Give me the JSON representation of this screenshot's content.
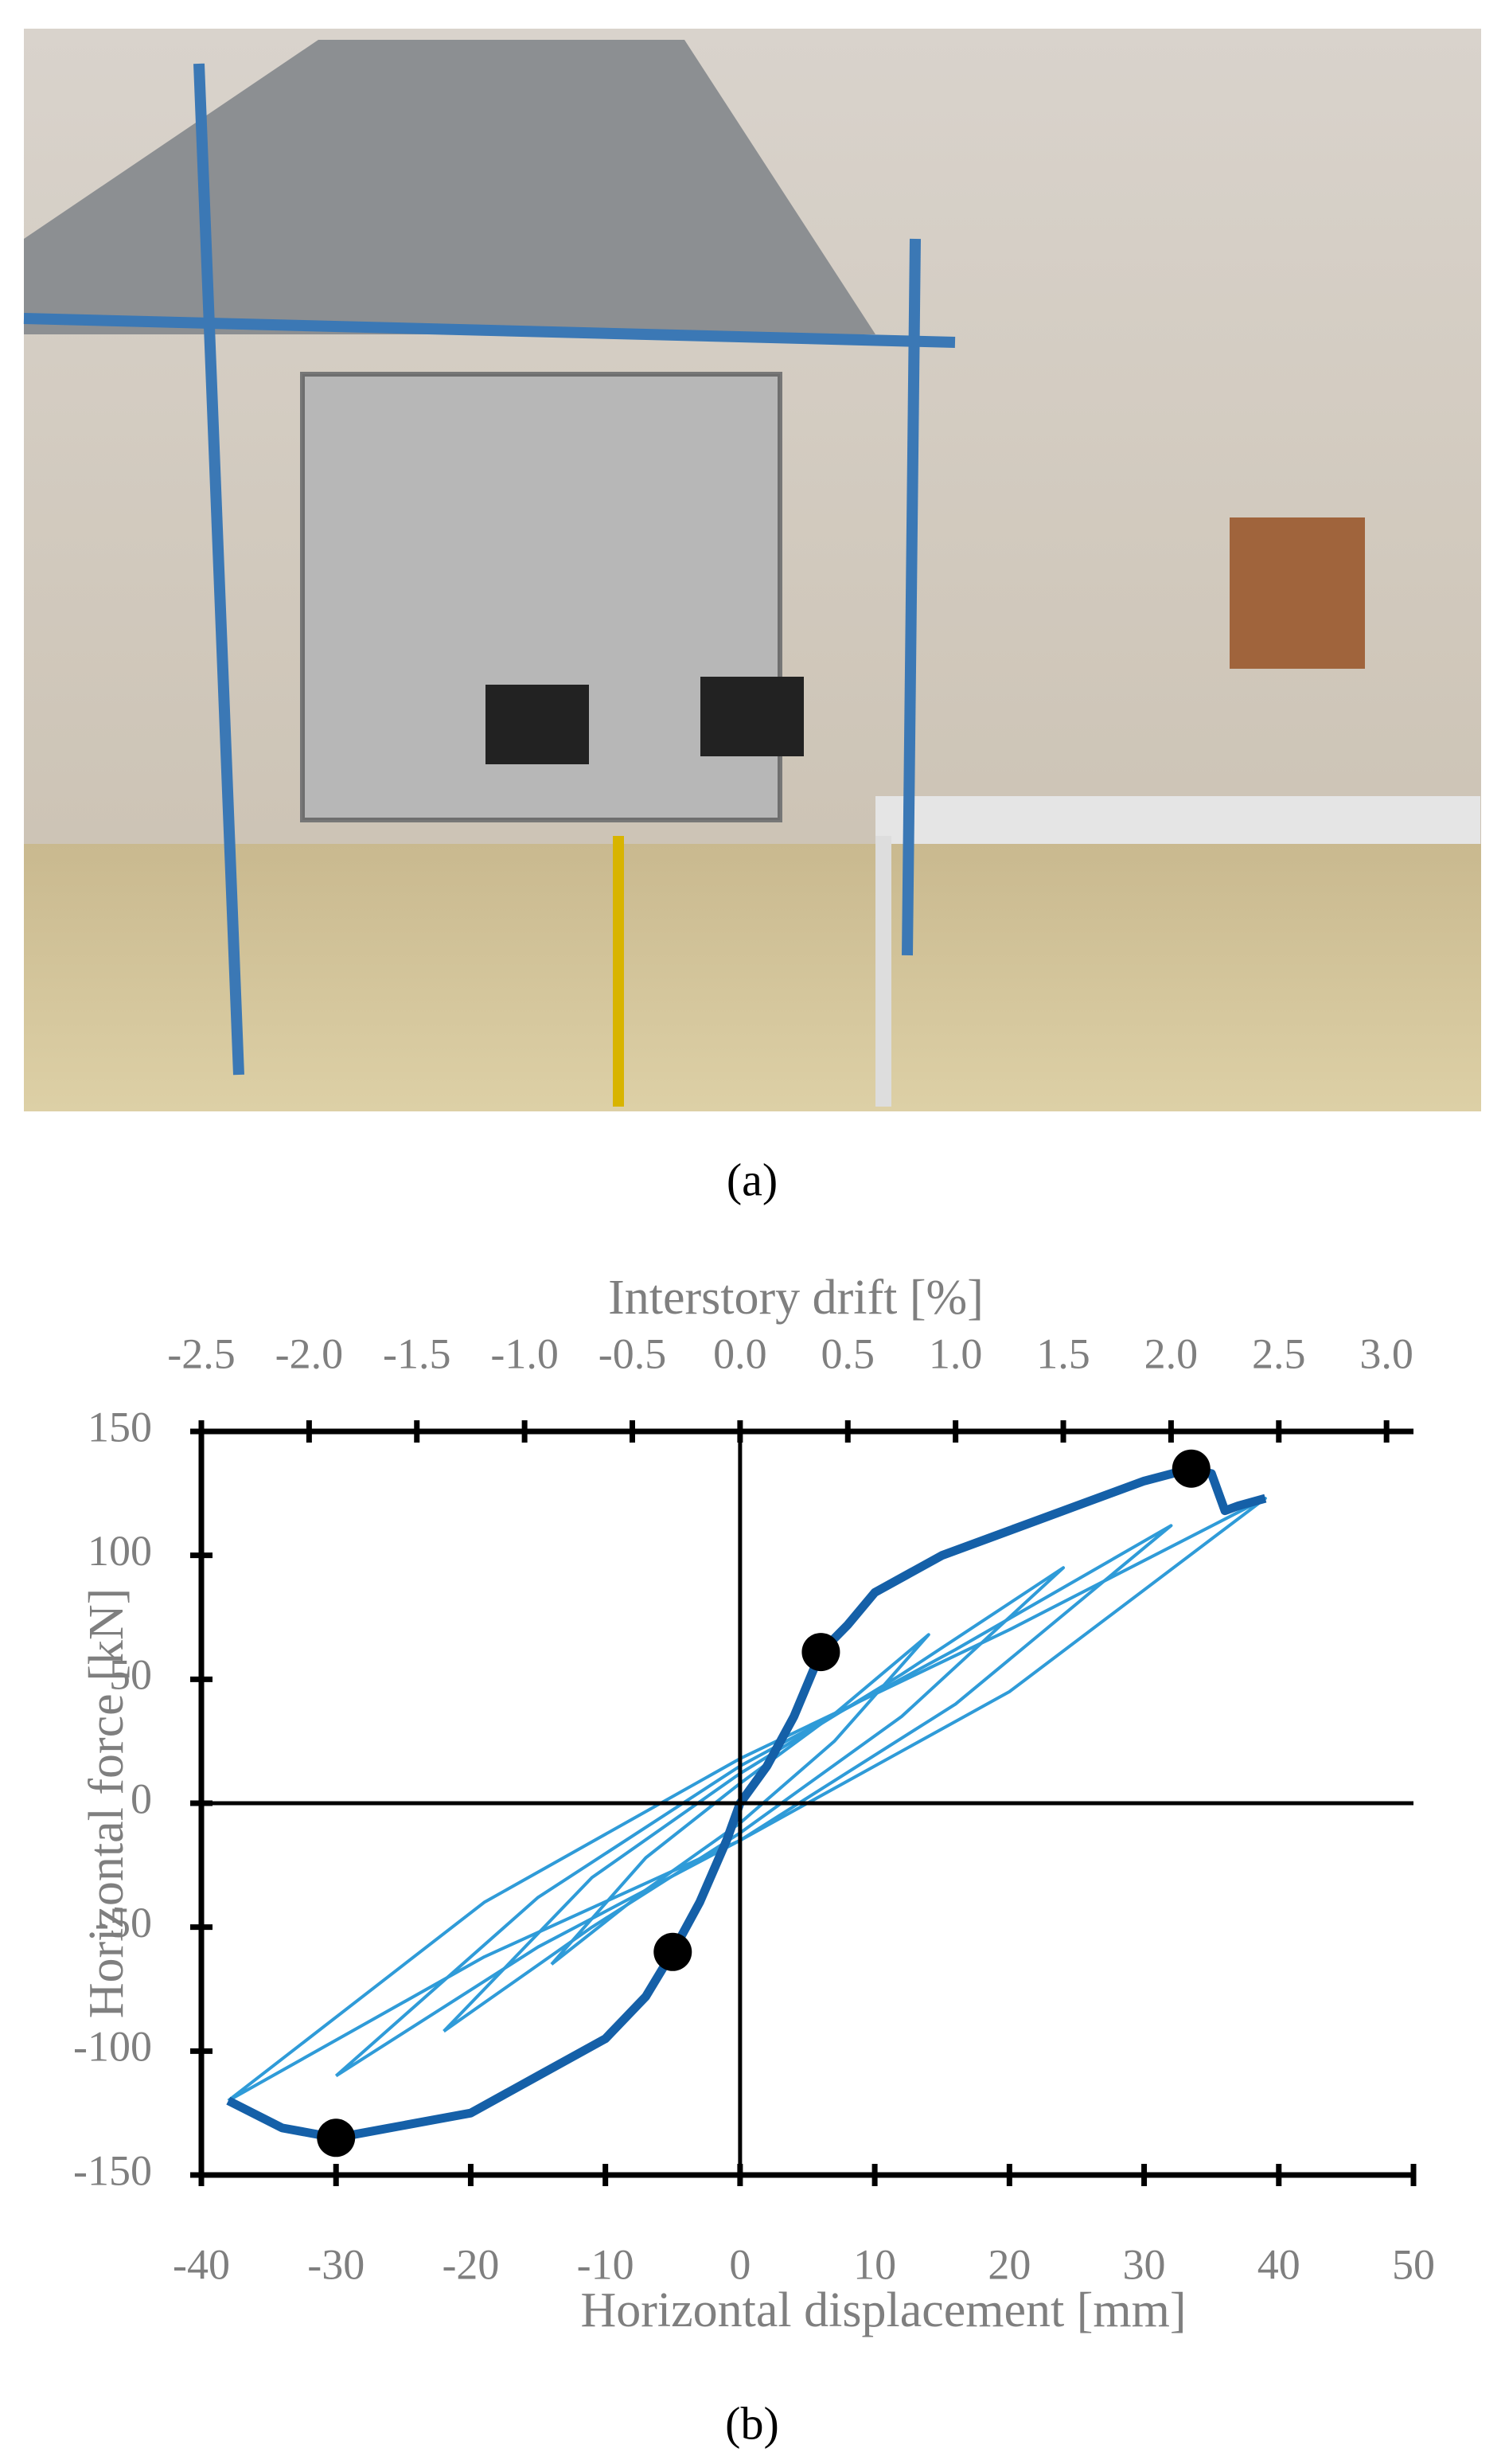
{
  "caption_a": "(a)",
  "caption_b": "(b)",
  "chart_data": {
    "type": "line",
    "x2_label": "Interstory drift [%]",
    "y_label": "Horizontal force [kN]",
    "x_label": "Horizontal displacement [mm]",
    "xlim": [
      -40,
      50
    ],
    "xticks": [
      -40,
      -30,
      -20,
      -10,
      0,
      10,
      20,
      30,
      40,
      50
    ],
    "x2lim": [
      -2.5,
      3.125
    ],
    "x2ticks": [
      -2.5,
      {
        "value": -2,
        "label": "-2.0"
      },
      -1.5,
      {
        "value": -1,
        "label": "-1.0"
      },
      -0.5,
      {
        "value": 0,
        "label": "0.0"
      },
      0.5,
      {
        "value": 1,
        "label": "1.0"
      },
      1.5,
      {
        "value": 2,
        "label": "2.0"
      },
      2.5,
      {
        "value": 3,
        "label": "3.0"
      }
    ],
    "ylim": [
      -150,
      150
    ],
    "yticks": [
      -150,
      -100,
      -50,
      0,
      50,
      100,
      150
    ],
    "series": [
      {
        "color": "#2f9bd8",
        "x": [
          -38,
          -19,
          0,
          20,
          39,
          20,
          0,
          -19,
          -38
        ],
        "values": [
          -120,
          -62,
          -15,
          45,
          123,
          70,
          18,
          -40,
          -120
        ]
      },
      {
        "color": "#2f9bd8",
        "x": [
          -30,
          -15,
          0,
          16,
          32,
          16,
          0,
          -15,
          -30
        ],
        "values": [
          -110,
          -58,
          -15,
          40,
          112,
          62,
          15,
          -38,
          -110
        ]
      },
      {
        "color": "#2f9bd8",
        "x": [
          -22,
          -11,
          0,
          12,
          24,
          12,
          0,
          -11,
          -22
        ],
        "values": [
          -92,
          -50,
          -12,
          35,
          95,
          52,
          12,
          -30,
          -92
        ]
      },
      {
        "color": "#2f9bd8",
        "x": [
          -14,
          -7,
          0,
          7,
          14,
          7,
          0,
          -7,
          -14
        ],
        "values": [
          -65,
          -35,
          -8,
          25,
          68,
          36,
          8,
          -22,
          -65
        ]
      },
      {
        "color": "#1560a8",
        "x": [
          -38,
          -34,
          -30,
          -25,
          -20,
          -15,
          -10,
          -7,
          -5,
          -3,
          -1,
          0,
          2,
          4,
          6,
          8,
          10,
          15,
          20,
          25,
          30,
          33.5,
          35,
          36,
          37,
          39
        ],
        "values": [
          -120,
          -131,
          -135,
          -130,
          -125,
          -110,
          -95,
          -78,
          -60,
          -40,
          -15,
          0,
          15,
          35,
          61,
          72,
          85,
          100,
          110,
          120,
          130,
          135,
          133,
          118,
          120,
          123
        ]
      }
    ],
    "points": {
      "color": "#000000",
      "x": [
        6,
        33.5,
        -5,
        -30
      ],
      "values": [
        61,
        135,
        -60,
        -135
      ]
    }
  }
}
